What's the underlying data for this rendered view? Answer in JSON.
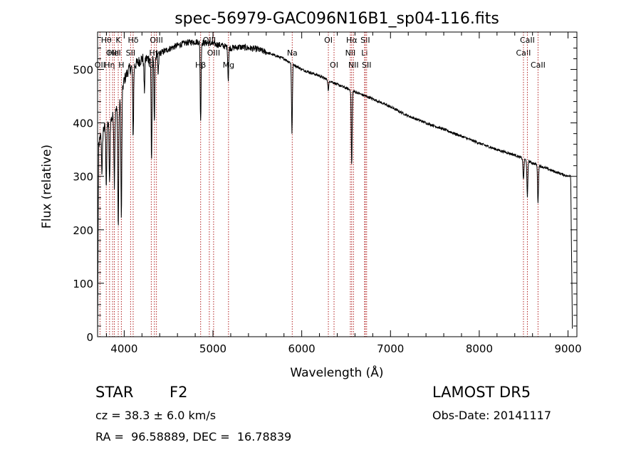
{
  "chart_data": {
    "type": "line",
    "title": "spec-56979-GAC096N16B1_sp04-116.fits",
    "xlabel": "Wavelength (Å)",
    "ylabel": "Flux (relative)",
    "xlim": [
      3700,
      9100
    ],
    "ylim": [
      0,
      570
    ],
    "x_ticks": [
      4000,
      5000,
      6000,
      7000,
      8000,
      9000
    ],
    "y_ticks": [
      0,
      100,
      200,
      300,
      400,
      500
    ],
    "grid": false,
    "line_color": "#000000",
    "marker_color": "#b22222",
    "continuum": {
      "x": [
        3700,
        3750,
        3800,
        3850,
        3900,
        3950,
        4000,
        4050,
        4100,
        4200,
        4300,
        4400,
        4500,
        4600,
        4700,
        4800,
        4900,
        5000,
        5100,
        5200,
        5300,
        5400,
        5500,
        5600,
        5800,
        6000,
        6200,
        6400,
        6600,
        6800,
        7000,
        7200,
        7400,
        7600,
        7800,
        8000,
        8200,
        8400,
        8600,
        8800,
        8950,
        9000,
        9050
      ],
      "y": [
        350,
        385,
        395,
        405,
        420,
        435,
        480,
        500,
        505,
        520,
        520,
        530,
        538,
        545,
        550,
        552,
        550,
        548,
        545,
        540,
        542,
        540,
        538,
        532,
        520,
        500,
        488,
        472,
        458,
        445,
        430,
        413,
        400,
        388,
        375,
        362,
        350,
        340,
        325,
        312,
        303,
        300,
        305
      ]
    },
    "absorption": [
      {
        "x": 3750,
        "depth": 80
      },
      {
        "x": 3798,
        "depth": 110
      },
      {
        "x": 3835,
        "depth": 120
      },
      {
        "x": 3889,
        "depth": 130
      },
      {
        "x": 3933,
        "depth": 230
      },
      {
        "x": 3968,
        "depth": 230
      },
      {
        "x": 4101,
        "depth": 130
      },
      {
        "x": 4227,
        "depth": 60
      },
      {
        "x": 4308,
        "depth": 190
      },
      {
        "x": 4340,
        "depth": 120
      },
      {
        "x": 4383,
        "depth": 40
      },
      {
        "x": 4861,
        "depth": 150
      },
      {
        "x": 5172,
        "depth": 60
      },
      {
        "x": 5890,
        "depth": 130
      },
      {
        "x": 6300,
        "depth": 20
      },
      {
        "x": 6563,
        "depth": 140
      },
      {
        "x": 8498,
        "depth": 40
      },
      {
        "x": 8542,
        "depth": 70
      },
      {
        "x": 8662,
        "depth": 70
      }
    ],
    "lines": [
      {
        "x": 3727,
        "label": "OII",
        "row": 2
      },
      {
        "x": 3798,
        "label": "Hθ",
        "row": 0
      },
      {
        "x": 3835,
        "label": "Hη",
        "row": 2
      },
      {
        "x": 3869,
        "label": "OIII",
        "row": 1
      },
      {
        "x": 3889,
        "label": "HeI",
        "row": 1
      },
      {
        "x": 3933,
        "label": "K",
        "row": 0
      },
      {
        "x": 3968,
        "label": "H",
        "row": 2
      },
      {
        "x": 4072,
        "label": "SII",
        "row": 1
      },
      {
        "x": 4101,
        "label": "Hδ",
        "row": 0
      },
      {
        "x": 4305,
        "label": "G",
        "row": 2
      },
      {
        "x": 4340,
        "label": "Hγ",
        "row": 1
      },
      {
        "x": 4363,
        "label": "OIII",
        "row": 0
      },
      {
        "x": 4861,
        "label": "Hβ",
        "row": 2
      },
      {
        "x": 4959,
        "label": "OIII",
        "row": 0
      },
      {
        "x": 5007,
        "label": "OIII",
        "row": 1
      },
      {
        "x": 5175,
        "label": "Mg",
        "row": 2
      },
      {
        "x": 5893,
        "label": "Na",
        "row": 1
      },
      {
        "x": 6300,
        "label": "OI",
        "row": 0
      },
      {
        "x": 6364,
        "label": "OI",
        "row": 2
      },
      {
        "x": 6548,
        "label": "NII",
        "row": 1
      },
      {
        "x": 6563,
        "label": "Hα",
        "row": 0
      },
      {
        "x": 6583,
        "label": "NII",
        "row": 2
      },
      {
        "x": 6708,
        "label": "Li",
        "row": 1
      },
      {
        "x": 6716,
        "label": "SII",
        "row": 0
      },
      {
        "x": 6731,
        "label": "SII",
        "row": 2
      },
      {
        "x": 8498,
        "label": "CaII",
        "row": 1
      },
      {
        "x": 8542,
        "label": "CaII",
        "row": 0
      },
      {
        "x": 8662,
        "label": "CaII",
        "row": 2
      }
    ]
  },
  "info": {
    "object_class": "STAR",
    "subclass": "F2",
    "survey": "LAMOST DR5",
    "cz": "cz = 38.3 ± 6.0 km/s",
    "obs_date": "Obs-Date: 20141117",
    "coords": "RA =  96.58889, DEC =  16.78839"
  }
}
